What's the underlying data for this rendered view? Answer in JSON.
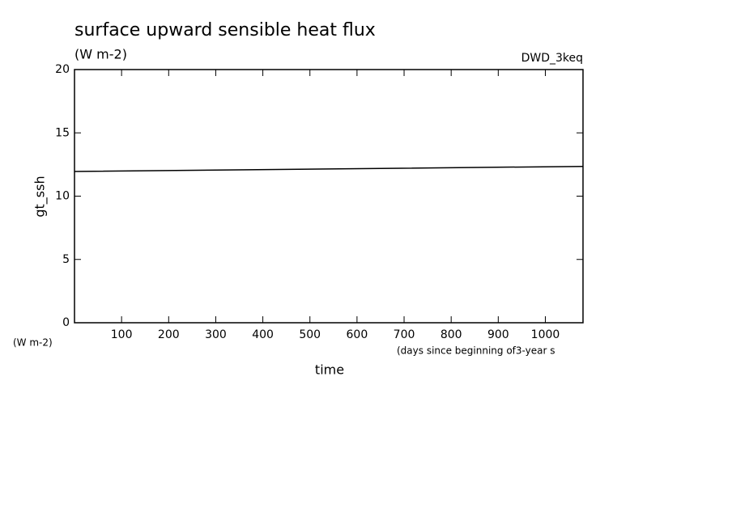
{
  "chart_data": {
    "type": "line",
    "title": "surface upward sensible heat flux",
    "subtitle": "(W m-2)",
    "source_label": "DWD_3keq",
    "y_label": "gt_ssh",
    "y_unit_label": "(W m-2)",
    "x_label": "time",
    "x_unit_label": "(days since beginning of3-year s",
    "x": [
      0,
      540,
      1080
    ],
    "series": [
      {
        "name": "gt_ssh",
        "color": "#000000",
        "values": [
          11.95,
          12.15,
          12.35
        ]
      }
    ],
    "xlim": [
      0,
      1080
    ],
    "xticks": [
      100,
      200,
      300,
      400,
      500,
      600,
      700,
      800,
      900,
      1000
    ],
    "ylim": [
      0,
      20
    ],
    "yticks": [
      0,
      5,
      10,
      15,
      20
    ]
  }
}
